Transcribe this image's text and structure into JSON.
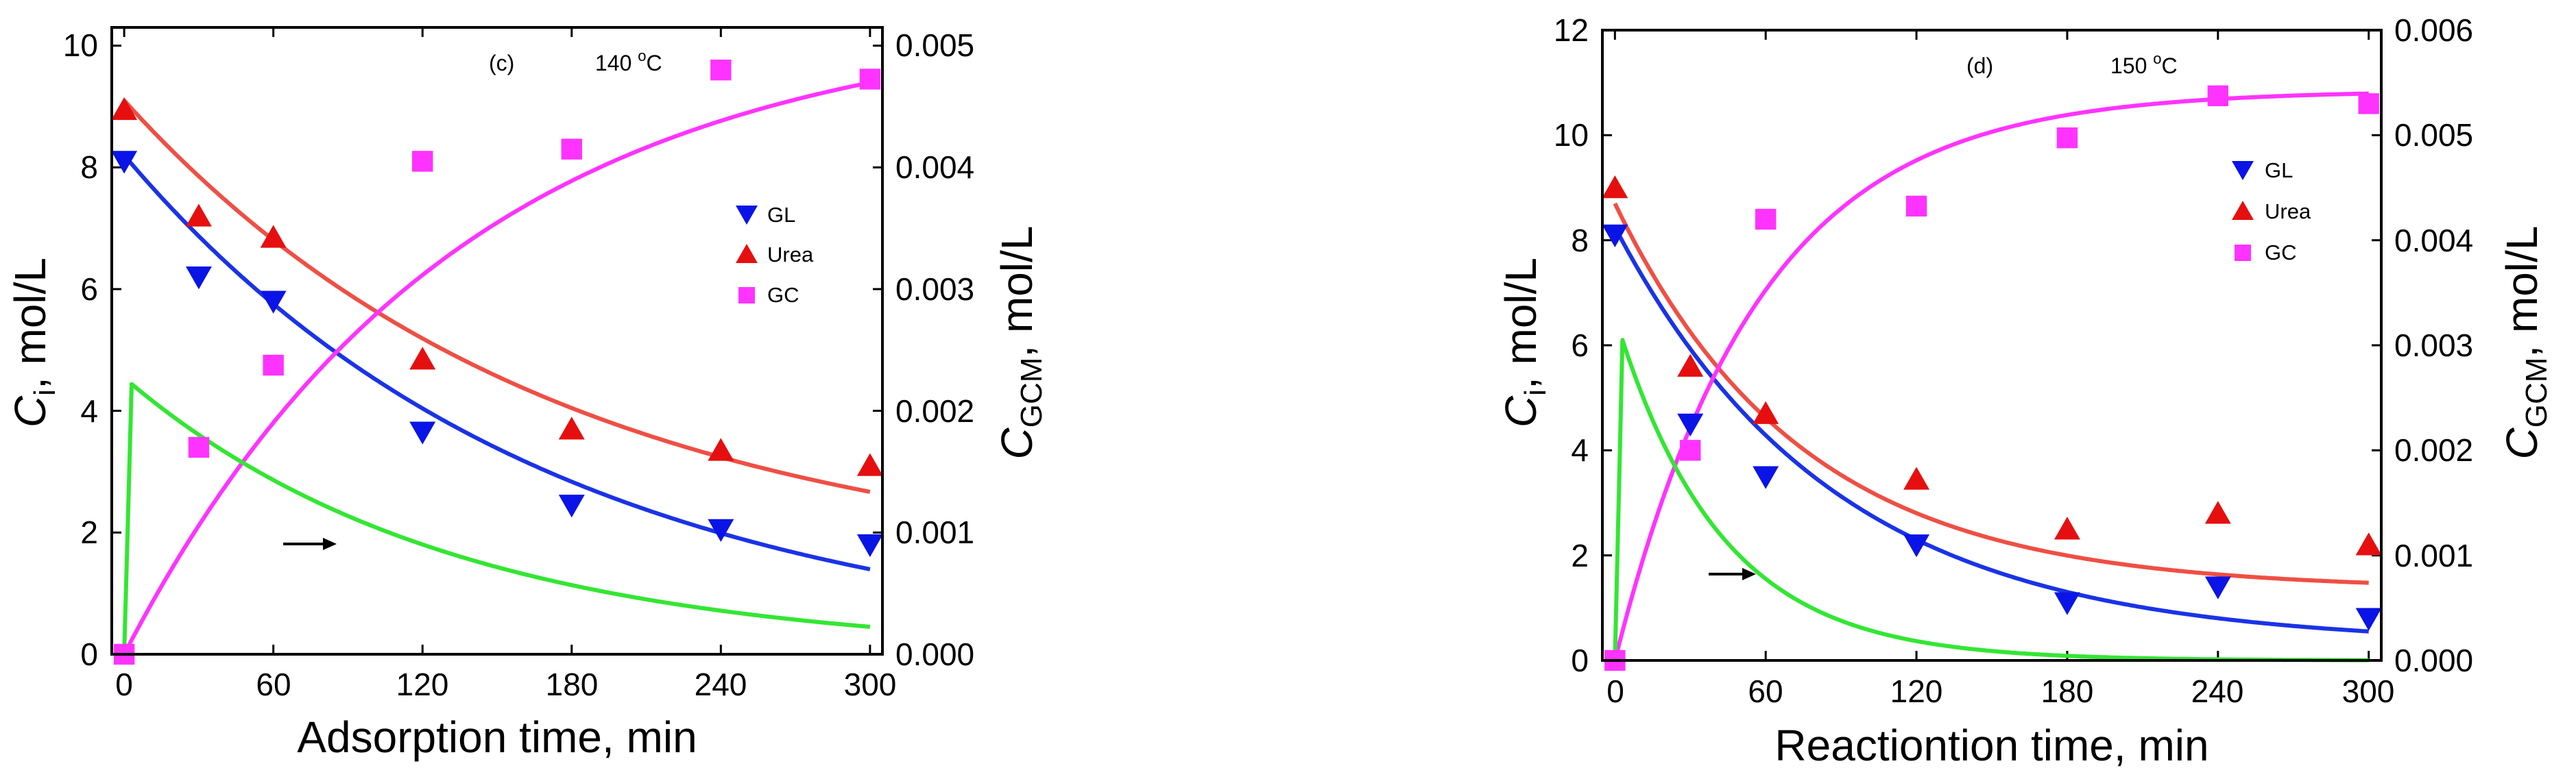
{
  "colors": {
    "GL": "#0a14e6",
    "Urea": "#e60f0f",
    "GC": "#ff33ff",
    "GCM": "#33e633",
    "fit_GL": "#1a33e6",
    "fit_Urea": "#ef4f44",
    "fit_GC": "#ff33ff",
    "axis": "#000000"
  },
  "charts": [
    {
      "label": "(c)",
      "temp_value": "140 ",
      "temp_sup": "o",
      "temp_unit": "C",
      "xlabel": "Adsorption time, min",
      "ylabel_main": "C",
      "ylabel_sub": "i",
      "ylabel_rest": ", mol/L",
      "y2label_main": "C",
      "y2label_sub": "GCM",
      "y2label_rest": ", mol/L",
      "xticks": [
        "0",
        "60",
        "120",
        "180",
        "240",
        "300"
      ],
      "yticks": [
        "0",
        "2",
        "4",
        "6",
        "8",
        "10"
      ],
      "y2ticks": [
        "0.000",
        "0.001",
        "0.002",
        "0.003",
        "0.004",
        "0.005"
      ],
      "legend": [
        "GL",
        "Urea",
        "GC"
      ]
    },
    {
      "label": "(d)",
      "temp_value": "150 ",
      "temp_sup": "o",
      "temp_unit": "C",
      "xlabel": "Reactiontion time, min",
      "ylabel_main": "C",
      "ylabel_sub": "i",
      "ylabel_rest": ", mol/L",
      "y2label_main": "C",
      "y2label_sub": "GCM",
      "y2label_rest": ", mol/L",
      "xticks": [
        "0",
        "60",
        "120",
        "180",
        "240",
        "300"
      ],
      "yticks": [
        "0",
        "2",
        "4",
        "6",
        "8",
        "10",
        "12"
      ],
      "y2ticks": [
        "0.000",
        "0.001",
        "0.002",
        "0.003",
        "0.004",
        "0.005",
        "0.006"
      ],
      "legend": [
        "GL",
        "Urea",
        "GC"
      ]
    }
  ],
  "chart_data": [
    {
      "type": "scatter",
      "title": "",
      "annotation": "(c) 140 oC",
      "xlabel": "Adsorption time, min",
      "ylabel": "Ci, mol/L",
      "y2label": "CGCM, mol/L",
      "xlim": [
        -5,
        305
      ],
      "ylim": [
        0,
        10.3
      ],
      "y2lim": [
        0,
        0.00515
      ],
      "xtick_values": [
        0,
        60,
        120,
        180,
        240,
        300
      ],
      "ytick_values": [
        0,
        2,
        4,
        6,
        8,
        10
      ],
      "y2tick_values": [
        0,
        0.001,
        0.002,
        0.003,
        0.004,
        0.005
      ],
      "legend_position": "right-middle",
      "series": [
        {
          "name": "GL",
          "marker": "triangle-down",
          "x": [
            0,
            30,
            60,
            120,
            180,
            240,
            300
          ],
          "y": [
            8.1,
            6.2,
            5.8,
            3.65,
            2.45,
            2.05,
            1.8
          ]
        },
        {
          "name": "Urea",
          "marker": "triangle-up",
          "x": [
            0,
            30,
            60,
            120,
            180,
            240,
            300
          ],
          "y": [
            8.95,
            7.2,
            6.85,
            4.85,
            3.7,
            3.35,
            3.1
          ]
        },
        {
          "name": "GC",
          "marker": "square",
          "x": [
            0,
            30,
            60,
            120,
            180,
            240,
            300
          ],
          "y": [
            0,
            3.4,
            4.75,
            8.1,
            8.3,
            9.6,
            9.45
          ]
        }
      ],
      "fits": [
        {
          "series": "GL",
          "axis": "left",
          "kind": "exp_decay",
          "c0": 8.2,
          "k": 0.0059
        },
        {
          "series": "Urea",
          "axis": "left",
          "kind": "exp_offset",
          "a": 1.3,
          "b": 7.8,
          "k": 0.0058
        },
        {
          "series": "GC",
          "axis": "left",
          "kind": "saturation",
          "cmax": 10.5,
          "k": 0.0075
        },
        {
          "series": "GCM",
          "axis": "right",
          "kind": "pulse",
          "peak": 0.00222,
          "t_peak": 3,
          "k": 0.0077
        }
      ],
      "arrow": {
        "from": [
          40,
          1.2
        ],
        "to": [
          63,
          1.2
        ],
        "direction": "right"
      }
    },
    {
      "type": "scatter",
      "title": "",
      "annotation": "(d) 150 oC",
      "xlabel": "Reactiontion time, min",
      "ylabel": "Ci, mol/L",
      "y2label": "CGCM, mol/L",
      "xlim": [
        -5,
        305
      ],
      "ylim": [
        0,
        12
      ],
      "y2lim": [
        0,
        0.006
      ],
      "xtick_values": [
        0,
        60,
        120,
        180,
        240,
        300
      ],
      "ytick_values": [
        0,
        2,
        4,
        6,
        8,
        10,
        12
      ],
      "y2tick_values": [
        0,
        0.001,
        0.002,
        0.003,
        0.004,
        0.005,
        0.006
      ],
      "legend_position": "right-upper",
      "series": [
        {
          "name": "GL",
          "marker": "triangle-down",
          "x": [
            0,
            30,
            60,
            120,
            180,
            240,
            300
          ],
          "y": [
            8.1,
            4.5,
            3.5,
            2.2,
            1.1,
            1.4,
            0.8
          ]
        },
        {
          "name": "Urea",
          "marker": "triangle-up",
          "x": [
            0,
            30,
            60,
            120,
            180,
            240,
            300
          ],
          "y": [
            9.0,
            5.6,
            4.7,
            3.45,
            2.5,
            2.8,
            2.2
          ]
        },
        {
          "name": "GC",
          "marker": "square",
          "x": [
            0,
            30,
            60,
            120,
            180,
            240,
            300
          ],
          "y": [
            0,
            4.0,
            8.4,
            8.65,
            9.95,
            10.75,
            10.6
          ]
        }
      ],
      "fits": [
        {
          "series": "GL",
          "axis": "left",
          "kind": "exp_offset",
          "a": 0.3,
          "b": 7.95,
          "k": 0.0115
        },
        {
          "series": "Urea",
          "axis": "left",
          "kind": "exp_offset",
          "a": 1.35,
          "b": 7.35,
          "k": 0.0135
        },
        {
          "series": "GC",
          "axis": "left",
          "kind": "saturation",
          "cmax": 10.85,
          "k": 0.0175
        },
        {
          "series": "GCM",
          "axis": "right",
          "kind": "pulse",
          "peak": 0.00305,
          "t_peak": 3,
          "k": 0.024
        }
      ],
      "arrow": {
        "from": [
          37,
          1.65
        ],
        "to": [
          57,
          1.65
        ],
        "direction": "right"
      }
    }
  ]
}
